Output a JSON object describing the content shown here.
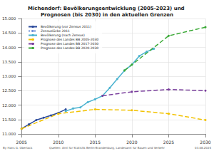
{
  "chart_data": {
    "type": "line",
    "title": "Michendorf: Bevölkerungsentwicklung (2005-2023) und Prognosen (bis 2030) in den aktuellen Grenzen",
    "annotations": [
      "By Hans G. Oberlack",
      "Quellen: Amt für Statistik Berlin-Brandenburg, Landesamt für Bauen und Verkehr",
      "03.08.2024"
    ],
    "xlim": [
      2005,
      2030
    ],
    "xticks": [
      2005,
      2010,
      2015,
      2020,
      2025,
      2030
    ],
    "ylim": [
      11000,
      15000
    ],
    "yticks": [
      {
        "value": 11000,
        "label": "11.000"
      },
      {
        "value": 11500,
        "label": "11.500"
      },
      {
        "value": 12000,
        "label": "12.000"
      },
      {
        "value": 12500,
        "label": "12.500"
      },
      {
        "value": 13000,
        "label": "13.000"
      },
      {
        "value": 13500,
        "label": "13.500"
      },
      {
        "value": 14000,
        "label": "14.000"
      },
      {
        "value": 14500,
        "label": "14.500"
      },
      {
        "value": 15000,
        "label": "15.000"
      }
    ],
    "grid": true,
    "legend": "upper left",
    "series": [
      {
        "name": "Bevölkerung (vor Zensus 2011)",
        "color": "#2b4a9c",
        "marker": "circle",
        "line_style": "solid",
        "x": [
          2005,
          2006,
          2007,
          2008,
          2009,
          2010,
          2011
        ],
        "values": [
          11180,
          11330,
          11480,
          11560,
          11640,
          11730,
          11850
        ]
      },
      {
        "name": "Zensuslücke 2011",
        "color": "#6f8fd8",
        "marker": "none",
        "line_style": "dotted",
        "x": [
          2011,
          2011
        ],
        "values": [
          11850,
          11790
        ]
      },
      {
        "name": "Bevölkerung (nach Zensus)",
        "color": "#49b2cf",
        "marker": "circle",
        "line_style": "solid",
        "x": [
          2011,
          2012,
          2013,
          2014,
          2015,
          2016,
          2017,
          2018,
          2019,
          2020,
          2021,
          2022,
          2023
        ],
        "values": [
          11790,
          11880,
          11920,
          12100,
          12200,
          12320,
          12600,
          12900,
          13200,
          13400,
          13700,
          13850,
          13950
        ]
      },
      {
        "name": "Prognose des Landes BB 2005-2030",
        "color": "#f2c200",
        "marker": "circle",
        "line_style": "dashed",
        "x": [
          2005,
          2010,
          2015,
          2020,
          2025,
          2030
        ],
        "values": [
          11180,
          11700,
          11850,
          11820,
          11700,
          11480
        ]
      },
      {
        "name": "Prognose des Landes BB 2017-2030",
        "color": "#7a3f9d",
        "marker": "circle",
        "line_style": "dashed",
        "x": [
          2016,
          2020,
          2025,
          2030
        ],
        "values": [
          12320,
          12460,
          12540,
          12500
        ]
      },
      {
        "name": "Prognose des Landes BB 2020-2030",
        "color": "#3aa936",
        "marker": "circle",
        "line_style": "dashed",
        "x": [
          2019,
          2020,
          2025,
          2030
        ],
        "values": [
          13200,
          13400,
          14400,
          14700
        ]
      }
    ]
  }
}
